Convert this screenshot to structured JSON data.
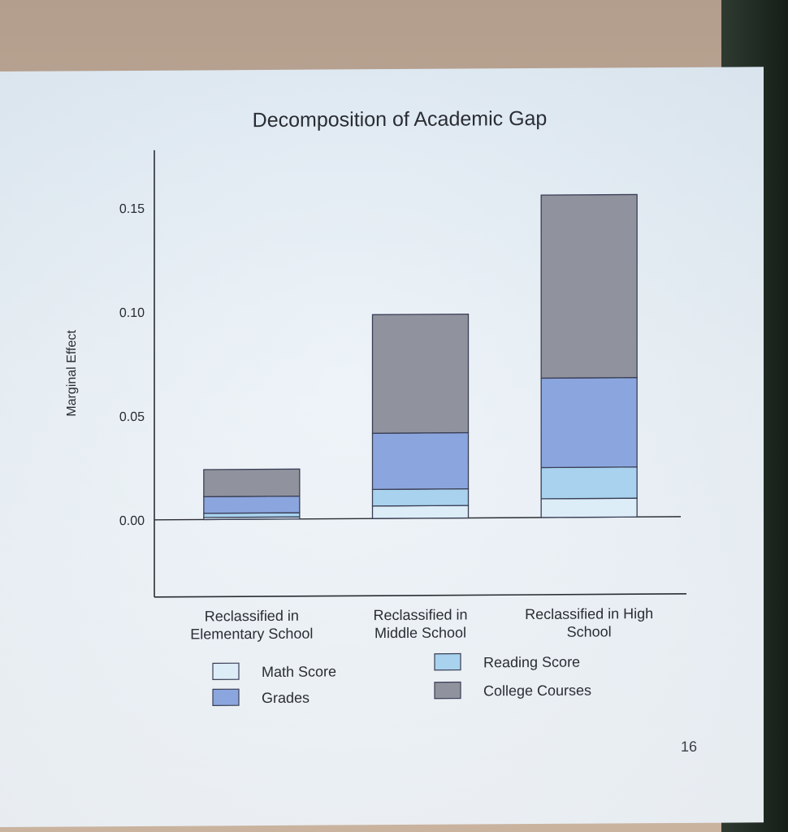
{
  "chart_data": {
    "type": "bar",
    "stacked": true,
    "title": "Decomposition of Academic Gap",
    "xlabel": "",
    "ylabel": "Marginal Effect",
    "ylim": [
      -0.04,
      0.18
    ],
    "yticks": [
      "0.00",
      "0.05",
      "0.10",
      "0.15"
    ],
    "categories": [
      [
        "Reclassified in",
        "Elementary School"
      ],
      [
        "Reclassified in",
        "Middle School"
      ],
      [
        "Reclassified in High",
        "School"
      ]
    ],
    "series": [
      {
        "name": "Math Score",
        "color": "#dcedf7",
        "values": [
          0.001,
          0.006,
          0.009
        ]
      },
      {
        "name": "Reading Score",
        "color": "#a8d2ee",
        "values": [
          0.002,
          0.008,
          0.015
        ]
      },
      {
        "name": "Grades",
        "color": "#8ba6de",
        "values": [
          0.008,
          0.027,
          0.043
        ]
      },
      {
        "name": "College Courses",
        "color": "#90939d",
        "values": [
          0.013,
          0.057,
          0.088
        ]
      }
    ],
    "grid": false,
    "legend_position": "bottom"
  },
  "page_number": "16",
  "colors": {
    "slide_background": "#e6eff6",
    "axis": "#2a2d33",
    "bar_outline": "#3a3e55"
  }
}
